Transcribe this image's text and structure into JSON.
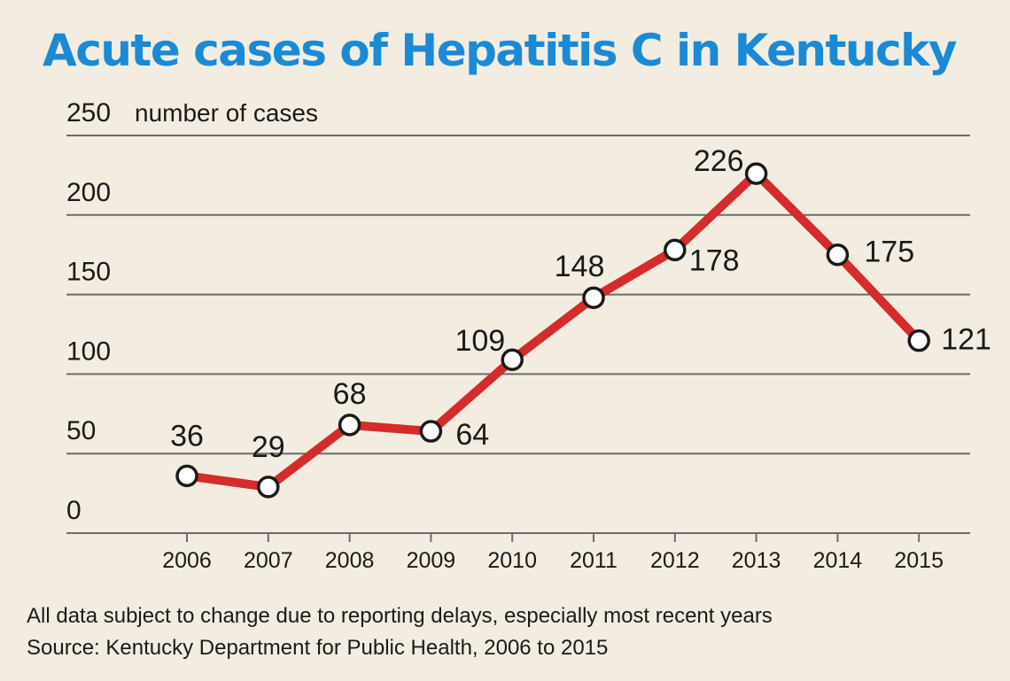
{
  "colors": {
    "title": "#1b8ad6",
    "line": "#d52b2b",
    "text": "#1a1a1a",
    "grid": "#6b6b6b",
    "background": "#f2ede0",
    "marker_fill": "#ffffff",
    "marker_stroke": "#1a1a1a"
  },
  "chart_data": {
    "type": "line",
    "title": "Acute cases of Hepatitis C in Kentucky",
    "xlabel": "",
    "ylabel": "number of cases",
    "categories": [
      "2006",
      "2007",
      "2008",
      "2009",
      "2010",
      "2011",
      "2012",
      "2013",
      "2014",
      "2015"
    ],
    "series": [
      {
        "name": "Acute cases",
        "values": [
          36,
          29,
          68,
          64,
          109,
          148,
          178,
          226,
          175,
          121
        ],
        "labels": [
          "36",
          "29",
          "68",
          "64",
          "109",
          "148",
          "178",
          "226",
          "175",
          "121"
        ]
      }
    ],
    "ylim": [
      0,
      250
    ],
    "yticks": [
      0,
      50,
      100,
      150,
      200,
      250
    ],
    "ytick_labels": [
      "0",
      "50",
      "100",
      "150",
      "200",
      "250"
    ],
    "grid": true
  },
  "notes": {
    "disclaimer": "All data subject to change due to reporting delays, especially most recent years",
    "source": "Source: Kentucky Department for Public Health, 2006 to 2015"
  }
}
